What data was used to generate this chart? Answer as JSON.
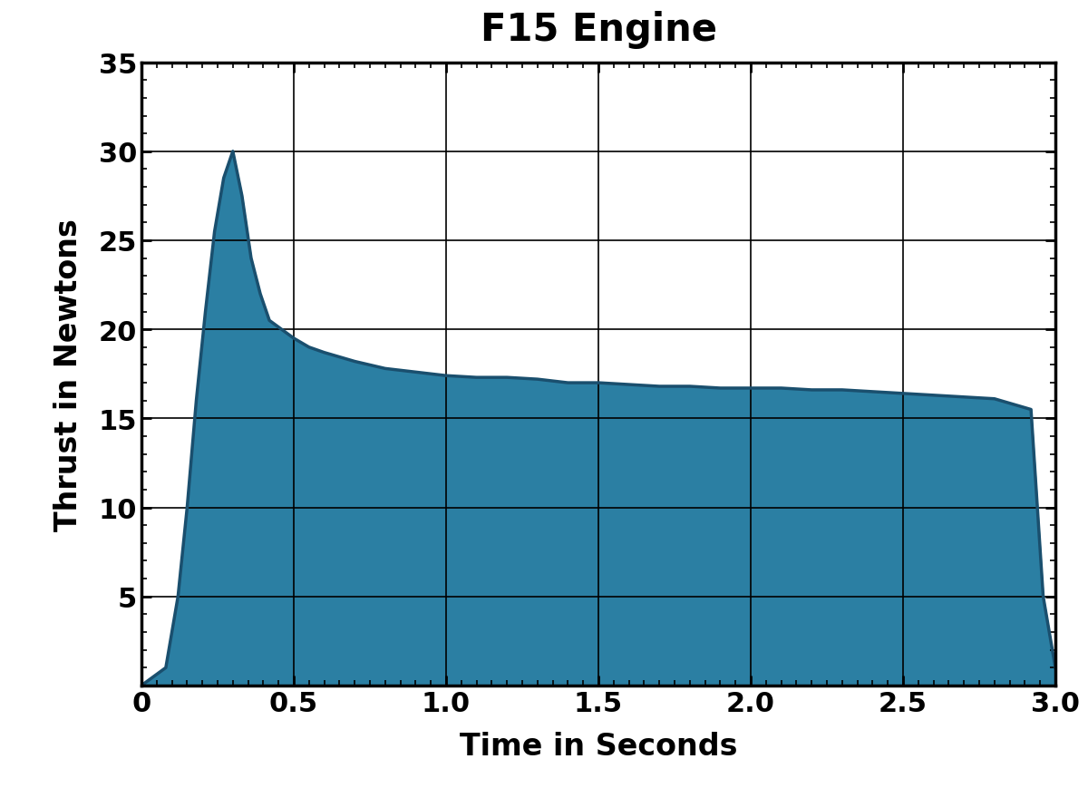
{
  "title": "F15 Engine",
  "xlabel": "Time in Seconds",
  "ylabel": "Thrust in Newtons",
  "xlim": [
    0,
    3.0
  ],
  "ylim": [
    0,
    35
  ],
  "xticks": [
    0,
    0.5,
    1.0,
    1.5,
    2.0,
    2.5,
    3.0
  ],
  "yticks": [
    0,
    5,
    10,
    15,
    20,
    25,
    30,
    35
  ],
  "xtick_labels": [
    "0",
    "0.5",
    "1.0",
    "1.5",
    "2.0",
    "2.5",
    "3.0"
  ],
  "ytick_labels": [
    "",
    "5",
    "10",
    "15",
    "20",
    "25",
    "30",
    "35"
  ],
  "fill_color": "#2b7fa3",
  "line_color": "#1a4f6e",
  "background_color": "#ffffff",
  "title_fontsize": 30,
  "label_fontsize": 24,
  "tick_fontsize": 22,
  "thrust_curve_x": [
    0.0,
    0.08,
    0.12,
    0.15,
    0.18,
    0.21,
    0.24,
    0.27,
    0.3,
    0.33,
    0.36,
    0.39,
    0.42,
    0.46,
    0.5,
    0.55,
    0.6,
    0.7,
    0.8,
    0.9,
    1.0,
    1.1,
    1.2,
    1.3,
    1.4,
    1.5,
    1.6,
    1.7,
    1.8,
    1.9,
    2.0,
    2.1,
    2.2,
    2.3,
    2.4,
    2.5,
    2.6,
    2.7,
    2.8,
    2.88,
    2.92,
    2.96,
    3.0
  ],
  "thrust_curve_y": [
    0.0,
    1.0,
    5.0,
    10.0,
    16.0,
    21.0,
    25.5,
    28.5,
    30.0,
    27.5,
    24.0,
    22.0,
    20.5,
    20.0,
    19.5,
    19.0,
    18.7,
    18.2,
    17.8,
    17.6,
    17.4,
    17.3,
    17.3,
    17.2,
    17.0,
    17.0,
    16.9,
    16.8,
    16.8,
    16.7,
    16.7,
    16.7,
    16.6,
    16.6,
    16.5,
    16.4,
    16.3,
    16.2,
    16.1,
    15.7,
    15.5,
    5.0,
    1.0
  ]
}
